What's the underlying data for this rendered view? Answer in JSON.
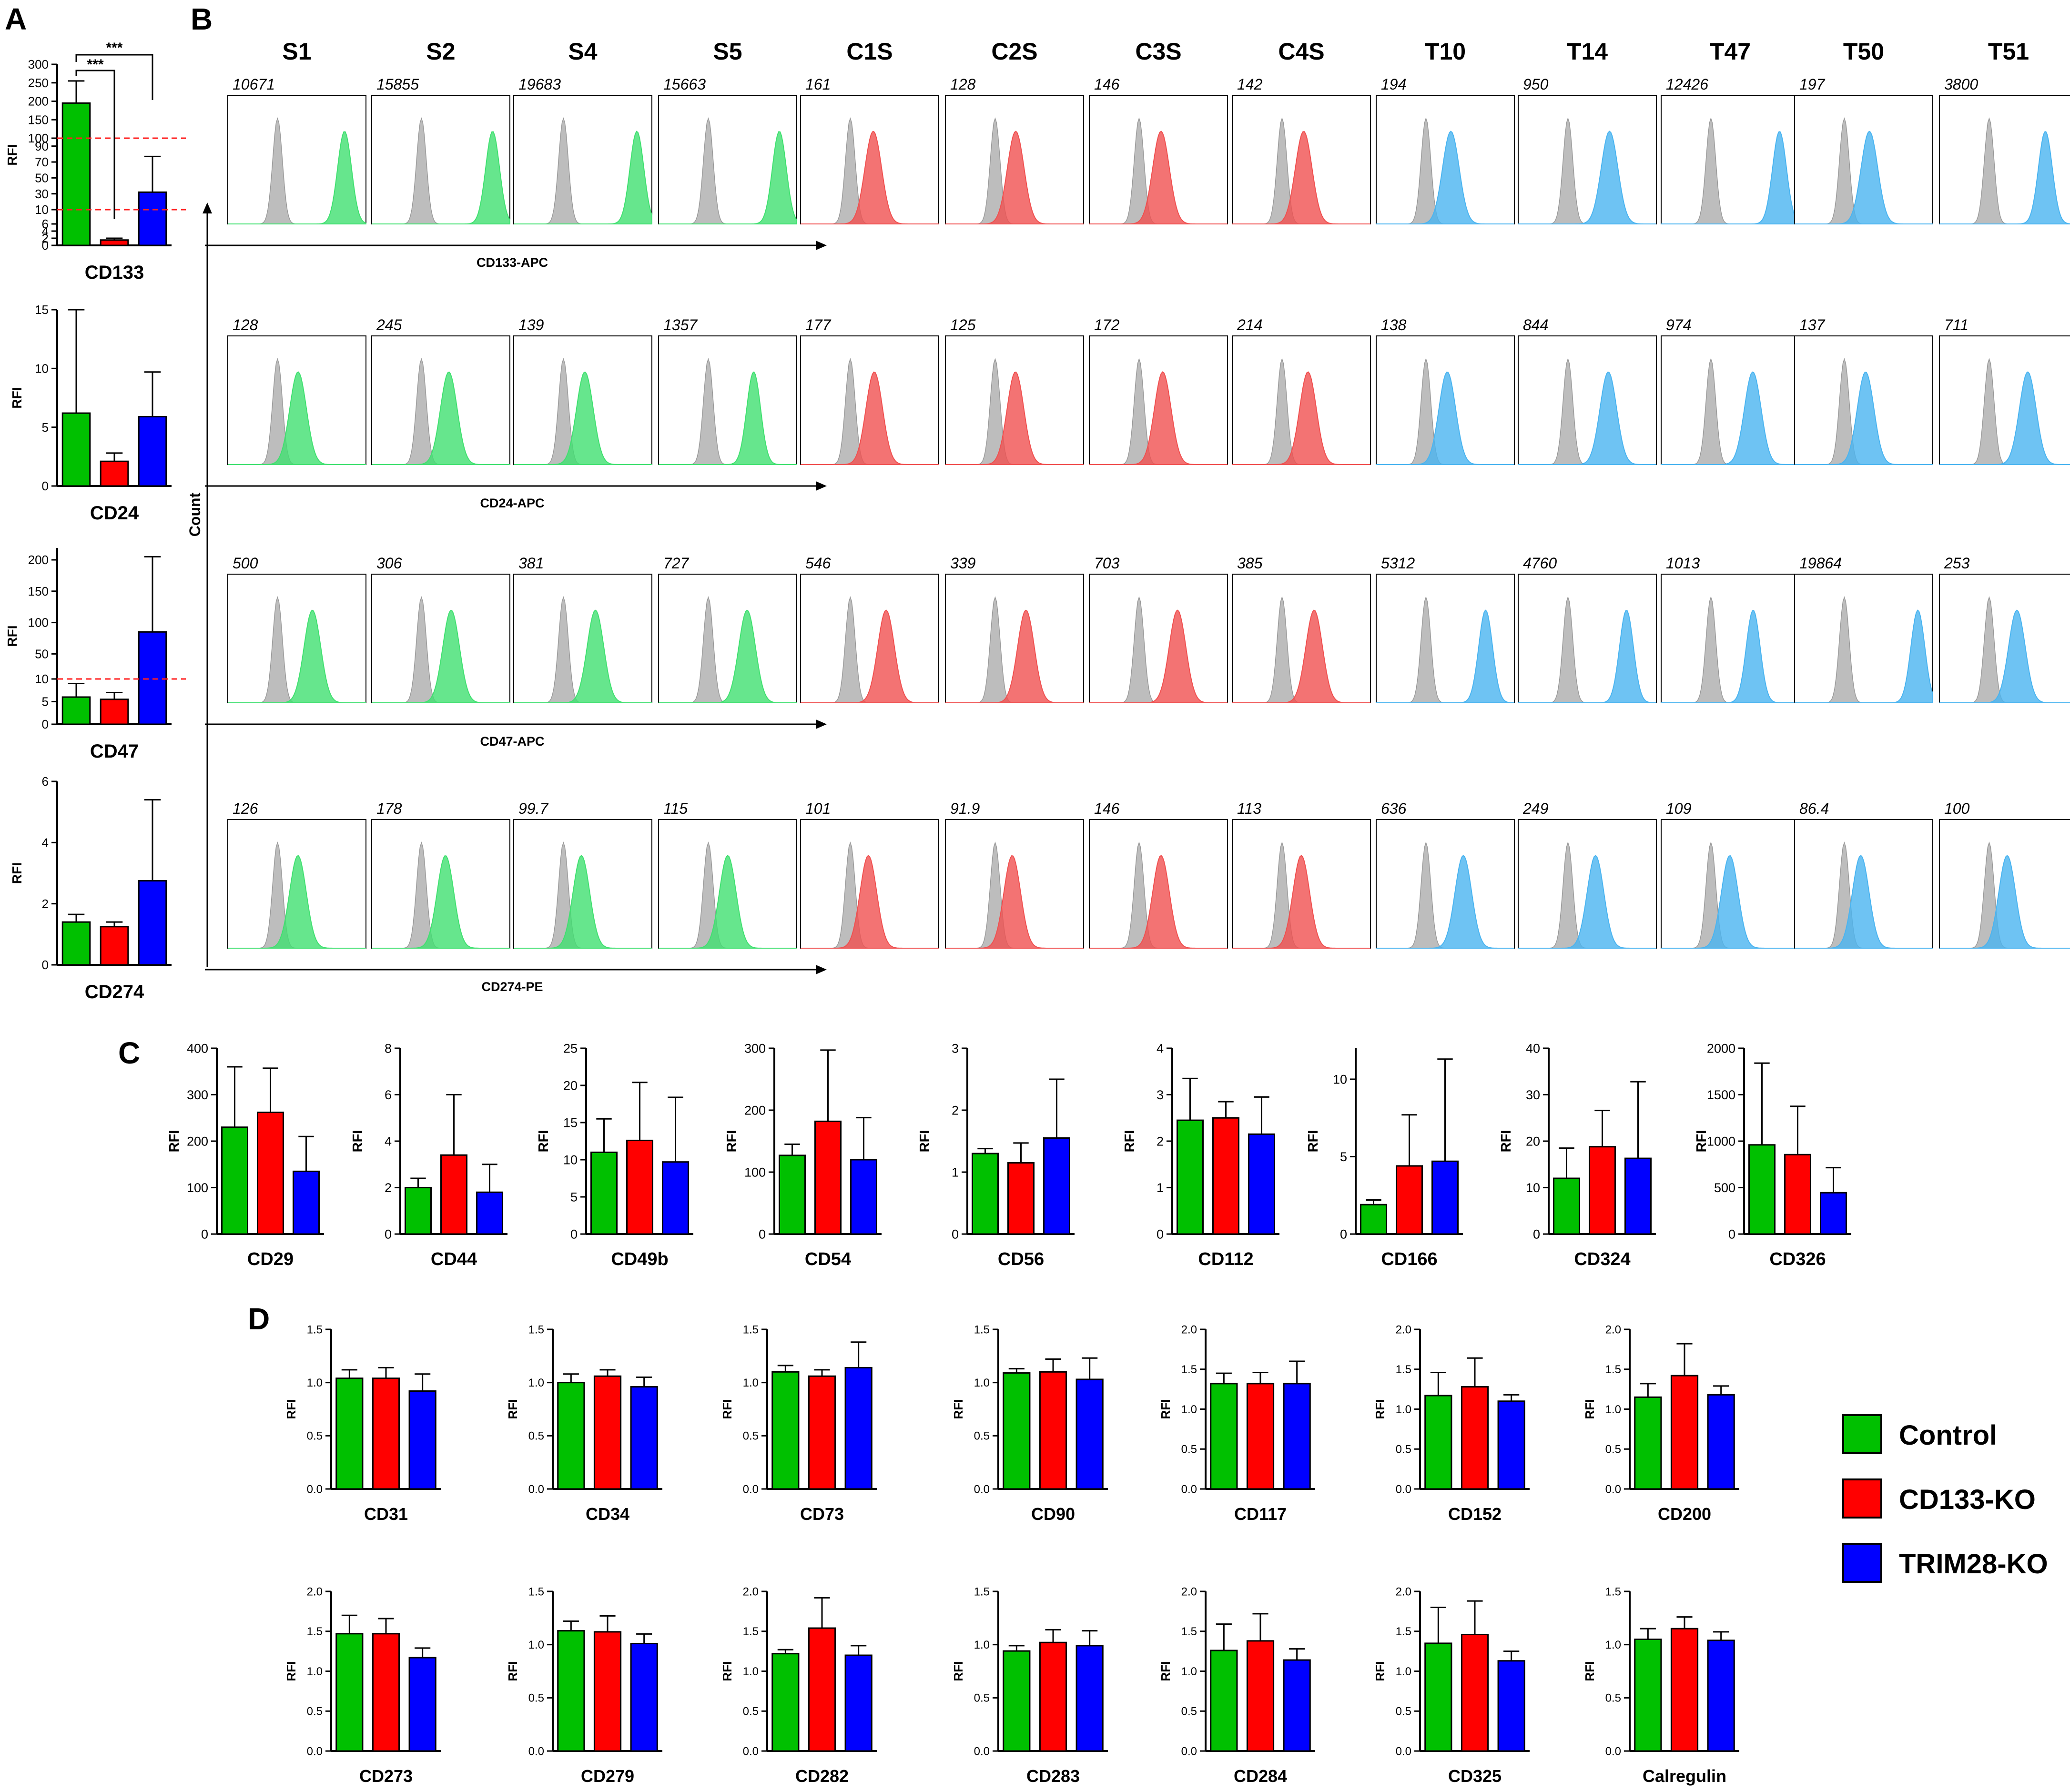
{
  "figure": {
    "panel_labels": [
      "A",
      "B",
      "C",
      "D"
    ],
    "rfi_label": "RFI",
    "count_label": "Count",
    "colors": {
      "control": "#00c000",
      "cd133ko": "#ff0000",
      "trim28ko": "#0000ff",
      "iso": "#bdbdbd",
      "flow_green": "#40e070",
      "flow_red": "#f05050",
      "flow_blue": "#4ab4f0",
      "cutoff": "#ff2020"
    }
  },
  "legend": {
    "items": [
      {
        "label": "Control",
        "color": "#00c000"
      },
      {
        "label": "CD133-KO",
        "color": "#ff0000"
      },
      {
        "label": "TRIM28-KO",
        "color": "#0000ff"
      }
    ]
  },
  "chart_data": [
    {
      "panel": "A",
      "type": "bar",
      "title": "CD133",
      "ylabel": "RFI",
      "broken_axis": true,
      "ticks": [
        "300",
        "250",
        "200",
        "150",
        "100",
        "90",
        "70",
        "50",
        "30",
        "10",
        "6",
        "4",
        "2",
        "0"
      ],
      "series": [
        {
          "name": "Control",
          "value": 195,
          "error": 60
        },
        {
          "name": "CD133-KO",
          "value": 1.5,
          "error": 0.5
        },
        {
          "name": "TRIM28-KO",
          "value": 32,
          "error": 45
        }
      ],
      "significance": [
        {
          "label": "***",
          "from": "Control",
          "to": "CD133-KO"
        },
        {
          "label": "***",
          "from": "Control",
          "to": "TRIM28-KO"
        }
      ],
      "cutoff_lines": 2
    },
    {
      "panel": "A",
      "type": "bar",
      "title": "CD24",
      "ylabel": "RFI",
      "ylim": [
        0,
        15
      ],
      "ticks": [
        "0",
        "5",
        "10",
        "15"
      ],
      "series": [
        {
          "name": "Control",
          "value": 6.2,
          "error": 8.8
        },
        {
          "name": "CD133-KO",
          "value": 2.1,
          "error": 0.7
        },
        {
          "name": "TRIM28-KO",
          "value": 5.9,
          "error": 3.8
        }
      ]
    },
    {
      "panel": "A",
      "type": "bar",
      "title": "CD47",
      "ylabel": "RFI",
      "broken_axis": true,
      "ticks": [
        "200",
        "150",
        "100",
        "50",
        "10",
        "5",
        "0"
      ],
      "series": [
        {
          "name": "Control",
          "value": 6,
          "error": 3
        },
        {
          "name": "CD133-KO",
          "value": 5.5,
          "error": 1.5
        },
        {
          "name": "TRIM28-KO",
          "value": 85,
          "error": 120
        }
      ],
      "cutoff_lines": 1
    },
    {
      "panel": "A",
      "type": "bar",
      "title": "CD274",
      "ylabel": "RFI",
      "ylim": [
        0,
        6
      ],
      "ticks": [
        "0",
        "2",
        "4",
        "6"
      ],
      "series": [
        {
          "name": "Control",
          "value": 1.4,
          "error": 0.25
        },
        {
          "name": "CD133-KO",
          "value": 1.25,
          "error": 0.15
        },
        {
          "name": "TRIM28-KO",
          "value": 2.75,
          "error": 2.65
        }
      ]
    },
    {
      "panel": "B",
      "type": "histogram_grid",
      "columns": [
        "S1",
        "S2",
        "S4",
        "S5",
        "C1S",
        "C2S",
        "C3S",
        "C4S",
        "T10",
        "T14",
        "T47",
        "T50",
        "T51"
      ],
      "rows": [
        {
          "marker": "CD133-APC",
          "mfi": [
            "10671",
            "15855",
            "19683",
            "15663",
            "161",
            "128",
            "146",
            "142",
            "194",
            "950",
            "12426",
            "197",
            "3800"
          ]
        },
        {
          "marker": "CD24-APC",
          "mfi": [
            "128",
            "245",
            "139",
            "1357",
            "177",
            "125",
            "172",
            "214",
            "138",
            "844",
            "974",
            "137",
            "711"
          ]
        },
        {
          "marker": "CD47-APC",
          "mfi": [
            "500",
            "306",
            "381",
            "727",
            "546",
            "339",
            "703",
            "385",
            "5312",
            "4760",
            "1013",
            "19864",
            "253"
          ]
        },
        {
          "marker": "CD274-PE",
          "mfi": [
            "126",
            "178",
            "99.7",
            "115",
            "101",
            "91.9",
            "146",
            "113",
            "636",
            "249",
            "109",
            "86.4",
            "100"
          ]
        }
      ]
    },
    {
      "panel": "C",
      "type": "bar",
      "title": "CD29",
      "ylabel": "RFI",
      "ylim": [
        0,
        400
      ],
      "ticks": [
        "0",
        "100",
        "200",
        "300",
        "400"
      ],
      "series": [
        {
          "name": "Control",
          "value": 230,
          "error": 130
        },
        {
          "name": "CD133-KO",
          "value": 262,
          "error": 95
        },
        {
          "name": "TRIM28-KO",
          "value": 135,
          "error": 75
        }
      ]
    },
    {
      "panel": "C",
      "type": "bar",
      "title": "CD44",
      "ylabel": "RFI",
      "ylim": [
        0,
        8
      ],
      "ticks": [
        "0",
        "2",
        "4",
        "6",
        "8"
      ],
      "series": [
        {
          "name": "Control",
          "value": 2,
          "error": 0.4
        },
        {
          "name": "CD133-KO",
          "value": 3.4,
          "error": 2.6
        },
        {
          "name": "TRIM28-KO",
          "value": 1.8,
          "error": 1.2
        }
      ]
    },
    {
      "panel": "C",
      "type": "bar",
      "title": "CD49b",
      "ylabel": "RFI",
      "ylim": [
        0,
        25
      ],
      "ticks": [
        "0",
        "5",
        "10",
        "15",
        "20",
        "25"
      ],
      "series": [
        {
          "name": "Control",
          "value": 11,
          "error": 4.5
        },
        {
          "name": "CD133-KO",
          "value": 12.6,
          "error": 7.8
        },
        {
          "name": "TRIM28-KO",
          "value": 9.7,
          "error": 8.7
        }
      ]
    },
    {
      "panel": "C",
      "type": "bar",
      "title": "CD54",
      "ylabel": "RFI",
      "ylim": [
        0,
        300
      ],
      "ticks": [
        "0",
        "100",
        "200",
        "300"
      ],
      "series": [
        {
          "name": "Control",
          "value": 127,
          "error": 18
        },
        {
          "name": "CD133-KO",
          "value": 182,
          "error": 115
        },
        {
          "name": "TRIM28-KO",
          "value": 120,
          "error": 68
        }
      ]
    },
    {
      "panel": "C",
      "type": "bar",
      "title": "CD56",
      "ylabel": "RFI",
      "ylim": [
        0,
        3
      ],
      "ticks": [
        "0",
        "1",
        "2",
        "3"
      ],
      "series": [
        {
          "name": "Control",
          "value": 1.3,
          "error": 0.08
        },
        {
          "name": "CD133-KO",
          "value": 1.15,
          "error": 0.32
        },
        {
          "name": "TRIM28-KO",
          "value": 1.55,
          "error": 0.95
        }
      ]
    },
    {
      "panel": "C",
      "type": "bar",
      "title": "CD112",
      "ylabel": "RFI",
      "ylim": [
        0,
        4
      ],
      "ticks": [
        "0",
        "1",
        "2",
        "3",
        "4"
      ],
      "series": [
        {
          "name": "Control",
          "value": 2.45,
          "error": 0.9
        },
        {
          "name": "CD133-KO",
          "value": 2.5,
          "error": 0.35
        },
        {
          "name": "TRIM28-KO",
          "value": 2.15,
          "error": 0.8
        }
      ]
    },
    {
      "panel": "C",
      "type": "bar",
      "title": "CD166",
      "ylabel": "RFI",
      "ylim": [
        0,
        12
      ],
      "ticks": [
        "0",
        "5",
        "10"
      ],
      "series": [
        {
          "name": "Control",
          "value": 1.9,
          "error": 0.3
        },
        {
          "name": "CD133-KO",
          "value": 4.4,
          "error": 3.3
        },
        {
          "name": "TRIM28-KO",
          "value": 4.7,
          "error": 6.6
        }
      ]
    },
    {
      "panel": "C",
      "type": "bar",
      "title": "CD324",
      "ylabel": "RFI",
      "ylim": [
        0,
        40
      ],
      "ticks": [
        "0",
        "10",
        "20",
        "30",
        "40"
      ],
      "series": [
        {
          "name": "Control",
          "value": 12,
          "error": 6.5
        },
        {
          "name": "CD133-KO",
          "value": 18.8,
          "error": 7.8
        },
        {
          "name": "TRIM28-KO",
          "value": 16.3,
          "error": 16.5
        }
      ]
    },
    {
      "panel": "C",
      "type": "bar",
      "title": "CD326",
      "ylabel": "RFI",
      "ylim": [
        0,
        2000
      ],
      "ticks": [
        "0",
        "500",
        "1000",
        "1500",
        "2000"
      ],
      "series": [
        {
          "name": "Control",
          "value": 960,
          "error": 880
        },
        {
          "name": "CD133-KO",
          "value": 855,
          "error": 520
        },
        {
          "name": "TRIM28-KO",
          "value": 445,
          "error": 270
        }
      ]
    },
    {
      "panel": "D",
      "type": "bar",
      "title": "CD31",
      "ylabel": "RFI",
      "ylim": [
        0,
        1.5
      ],
      "ticks": [
        "0.0",
        "0.5",
        "1.0",
        "1.5"
      ],
      "series": [
        {
          "name": "Control",
          "value": 1.04,
          "error": 0.08
        },
        {
          "name": "CD133-KO",
          "value": 1.04,
          "error": 0.1
        },
        {
          "name": "TRIM28-KO",
          "value": 0.92,
          "error": 0.16
        }
      ]
    },
    {
      "panel": "D",
      "type": "bar",
      "title": "CD34",
      "ylabel": "RFI",
      "ylim": [
        0,
        1.5
      ],
      "ticks": [
        "0.0",
        "0.5",
        "1.0",
        "1.5"
      ],
      "series": [
        {
          "name": "Control",
          "value": 1.0,
          "error": 0.08
        },
        {
          "name": "CD133-KO",
          "value": 1.06,
          "error": 0.06
        },
        {
          "name": "TRIM28-KO",
          "value": 0.96,
          "error": 0.09
        }
      ]
    },
    {
      "panel": "D",
      "type": "bar",
      "title": "CD73",
      "ylabel": "RFI",
      "ylim": [
        0,
        1.5
      ],
      "ticks": [
        "0.0",
        "0.5",
        "1.0",
        "1.5"
      ],
      "series": [
        {
          "name": "Control",
          "value": 1.1,
          "error": 0.06
        },
        {
          "name": "CD133-KO",
          "value": 1.06,
          "error": 0.06
        },
        {
          "name": "TRIM28-KO",
          "value": 1.14,
          "error": 0.24
        }
      ]
    },
    {
      "panel": "D",
      "type": "bar",
      "title": "CD90",
      "ylabel": "RFI",
      "ylim": [
        0,
        1.5
      ],
      "ticks": [
        "0.0",
        "0.5",
        "1.0",
        "1.5"
      ],
      "series": [
        {
          "name": "Control",
          "value": 1.09,
          "error": 0.04
        },
        {
          "name": "CD133-KO",
          "value": 1.1,
          "error": 0.12
        },
        {
          "name": "TRIM28-KO",
          "value": 1.03,
          "error": 0.2
        }
      ]
    },
    {
      "panel": "D",
      "type": "bar",
      "title": "CD117",
      "ylabel": "RFI",
      "ylim": [
        0,
        2
      ],
      "ticks": [
        "0.0",
        "0.5",
        "1.0",
        "1.5",
        "2.0"
      ],
      "series": [
        {
          "name": "Control",
          "value": 1.32,
          "error": 0.13
        },
        {
          "name": "CD133-KO",
          "value": 1.32,
          "error": 0.14
        },
        {
          "name": "TRIM28-KO",
          "value": 1.32,
          "error": 0.28
        }
      ]
    },
    {
      "panel": "D",
      "type": "bar",
      "title": "CD152",
      "ylabel": "RFI",
      "ylim": [
        0,
        2
      ],
      "ticks": [
        "0.0",
        "0.5",
        "1.0",
        "1.5",
        "2.0"
      ],
      "series": [
        {
          "name": "Control",
          "value": 1.17,
          "error": 0.29
        },
        {
          "name": "CD133-KO",
          "value": 1.28,
          "error": 0.36
        },
        {
          "name": "TRIM28-KO",
          "value": 1.1,
          "error": 0.08
        }
      ]
    },
    {
      "panel": "D",
      "type": "bar",
      "title": "CD200",
      "ylabel": "RFI",
      "ylim": [
        0,
        2
      ],
      "ticks": [
        "0.0",
        "0.5",
        "1.0",
        "1.5",
        "2.0"
      ],
      "series": [
        {
          "name": "Control",
          "value": 1.15,
          "error": 0.17
        },
        {
          "name": "CD133-KO",
          "value": 1.42,
          "error": 0.4
        },
        {
          "name": "TRIM28-KO",
          "value": 1.18,
          "error": 0.11
        }
      ]
    },
    {
      "panel": "D",
      "type": "bar",
      "title": "CD273",
      "ylabel": "RFI",
      "ylim": [
        0,
        2
      ],
      "ticks": [
        "0.0",
        "0.5",
        "1.0",
        "1.5",
        "2.0"
      ],
      "series": [
        {
          "name": "Control",
          "value": 1.47,
          "error": 0.23
        },
        {
          "name": "CD133-KO",
          "value": 1.47,
          "error": 0.19
        },
        {
          "name": "TRIM28-KO",
          "value": 1.17,
          "error": 0.12
        }
      ]
    },
    {
      "panel": "D",
      "type": "bar",
      "title": "CD279",
      "ylabel": "RFI",
      "ylim": [
        0,
        1.5
      ],
      "ticks": [
        "0.0",
        "0.5",
        "1.0",
        "1.5"
      ],
      "series": [
        {
          "name": "Control",
          "value": 1.13,
          "error": 0.09
        },
        {
          "name": "CD133-KO",
          "value": 1.12,
          "error": 0.15
        },
        {
          "name": "TRIM28-KO",
          "value": 1.01,
          "error": 0.09
        }
      ]
    },
    {
      "panel": "D",
      "type": "bar",
      "title": "CD282",
      "ylabel": "RFI",
      "ylim": [
        0,
        2
      ],
      "ticks": [
        "0.0",
        "0.5",
        "1.0",
        "1.5",
        "2.0"
      ],
      "series": [
        {
          "name": "Control",
          "value": 1.22,
          "error": 0.05
        },
        {
          "name": "CD133-KO",
          "value": 1.54,
          "error": 0.38
        },
        {
          "name": "TRIM28-KO",
          "value": 1.2,
          "error": 0.12
        }
      ]
    },
    {
      "panel": "D",
      "type": "bar",
      "title": "CD283",
      "ylabel": "RFI",
      "ylim": [
        0,
        1.5
      ],
      "ticks": [
        "0.0",
        "0.5",
        "1.0",
        "1.5"
      ],
      "series": [
        {
          "name": "Control",
          "value": 0.94,
          "error": 0.05
        },
        {
          "name": "CD133-KO",
          "value": 1.02,
          "error": 0.12
        },
        {
          "name": "TRIM28-KO",
          "value": 0.99,
          "error": 0.14
        }
      ]
    },
    {
      "panel": "D",
      "type": "bar",
      "title": "CD284",
      "ylabel": "RFI",
      "ylim": [
        0,
        2
      ],
      "ticks": [
        "0.0",
        "0.5",
        "1.0",
        "1.5",
        "2.0"
      ],
      "series": [
        {
          "name": "Control",
          "value": 1.26,
          "error": 0.33
        },
        {
          "name": "CD133-KO",
          "value": 1.38,
          "error": 0.34
        },
        {
          "name": "TRIM28-KO",
          "value": 1.14,
          "error": 0.14
        }
      ]
    },
    {
      "panel": "D",
      "type": "bar",
      "title": "CD325",
      "ylabel": "RFI",
      "ylim": [
        0,
        2
      ],
      "ticks": [
        "0.0",
        "0.5",
        "1.0",
        "1.5",
        "2.0"
      ],
      "series": [
        {
          "name": "Control",
          "value": 1.35,
          "error": 0.45
        },
        {
          "name": "CD133-KO",
          "value": 1.46,
          "error": 0.42
        },
        {
          "name": "TRIM28-KO",
          "value": 1.13,
          "error": 0.12
        }
      ]
    },
    {
      "panel": "D",
      "type": "bar",
      "title": "Calregulin",
      "ylabel": "RFI",
      "ylim": [
        0,
        1.5
      ],
      "ticks": [
        "0.0",
        "0.5",
        "1.0",
        "1.5"
      ],
      "series": [
        {
          "name": "Control",
          "value": 1.05,
          "error": 0.1
        },
        {
          "name": "CD133-KO",
          "value": 1.15,
          "error": 0.11
        },
        {
          "name": "TRIM28-KO",
          "value": 1.04,
          "error": 0.08
        }
      ]
    }
  ]
}
